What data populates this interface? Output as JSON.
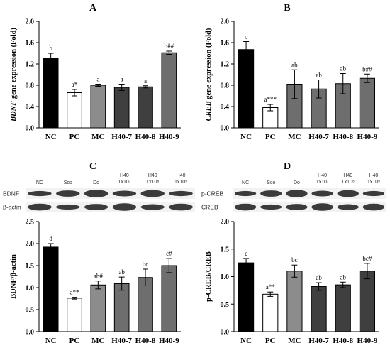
{
  "colors": {
    "NC": "#000000",
    "PC": "#ffffff",
    "MC": "#8c8c8c",
    "H40": "#3f3f3f",
    "H40-9_A": "#6e6e6e"
  },
  "chart_data": [
    {
      "panel": "A",
      "type": "bar",
      "title": "A",
      "ylabel_italic": "BDNF",
      "ylabel_rest": " gene expression (Fold)",
      "categories": [
        "NC",
        "PC",
        "MC",
        "H40-7",
        "H40-8",
        "H40-9"
      ],
      "values": [
        1.3,
        0.66,
        0.8,
        0.76,
        0.77,
        1.41
      ],
      "errors": [
        0.1,
        0.06,
        0.02,
        0.06,
        0.02,
        0.03
      ],
      "sig": [
        "b",
        "a*",
        "a",
        "a",
        "a",
        "b##"
      ],
      "fill_keys": [
        "NC",
        "PC",
        "MC",
        "H40",
        "H40",
        "H40-9_A"
      ],
      "ylim": [
        0.0,
        2.0
      ],
      "yticks": [
        "0.0",
        "0.4",
        "0.8",
        "1.2",
        "1.6",
        "2.0"
      ]
    },
    {
      "panel": "B",
      "type": "bar",
      "title": "B",
      "ylabel_italic": "CREB",
      "ylabel_rest": " gene expression (Fold)",
      "categories": [
        "NC",
        "PC",
        "MC",
        "H40-7",
        "H40-8",
        "H40-9"
      ],
      "values": [
        1.47,
        0.38,
        0.82,
        0.73,
        0.83,
        0.93
      ],
      "errors": [
        0.15,
        0.06,
        0.27,
        0.17,
        0.19,
        0.08
      ],
      "sig": [
        "c",
        "a***",
        "ab",
        "ab",
        "ab",
        "b##"
      ],
      "fill_keys": [
        "NC",
        "PC",
        "H40-9_A",
        "H40-9_A",
        "H40-9_A",
        "H40-9_A"
      ],
      "ylim": [
        0.0,
        2.0
      ],
      "yticks": [
        "0.0",
        "0.4",
        "0.8",
        "1.2",
        "1.6",
        "2.0"
      ]
    },
    {
      "panel": "C",
      "type": "bar",
      "title": "C",
      "ylabel_italic": "",
      "ylabel_rest": "BDNF/β-actin",
      "categories": [
        "NC",
        "PC",
        "MC",
        "H40-7",
        "H40-8",
        "H40-9"
      ],
      "values": [
        1.92,
        0.76,
        1.06,
        1.09,
        1.23,
        1.5
      ],
      "errors": [
        0.08,
        0.02,
        0.09,
        0.15,
        0.19,
        0.16
      ],
      "sig": [
        "d",
        "a**",
        "ab#",
        "ab",
        "bc",
        "c#"
      ],
      "fill_keys": [
        "NC",
        "PC",
        "MC",
        "H40-9_A",
        "H40-9_A",
        "H40-9_A"
      ],
      "ylim": [
        0.0,
        2.5
      ],
      "yticks": [
        "0.0",
        "0.5",
        "1.0",
        "1.5",
        "2.0",
        "2.5"
      ]
    },
    {
      "panel": "D",
      "type": "bar",
      "title": "D",
      "ylabel_italic": "",
      "ylabel_rest": "p-CREB/CREB",
      "categories": [
        "NC",
        "PC",
        "MC",
        "H40-7",
        "H40-8",
        "H40-9"
      ],
      "values": [
        1.25,
        0.68,
        1.1,
        0.82,
        0.85,
        1.1
      ],
      "errors": [
        0.08,
        0.04,
        0.11,
        0.07,
        0.05,
        0.14
      ],
      "sig": [
        "c",
        "a**",
        "bc",
        "ab",
        "ab",
        "bc#"
      ],
      "fill_keys": [
        "NC",
        "PC",
        "MC",
        "H40",
        "H40",
        "H40"
      ],
      "ylim": [
        0.0,
        2.0
      ],
      "yticks": [
        "0.0",
        "0.5",
        "1.0",
        "1.5",
        "2.0"
      ]
    }
  ],
  "blots": {
    "C": {
      "lane_labels": [
        [
          "NC"
        ],
        [
          "Sco"
        ],
        [
          "Do"
        ],
        [
          "H40",
          "1x10⁷"
        ],
        [
          "H40",
          "1x10⁸"
        ],
        [
          "H40",
          "1x10⁹"
        ]
      ],
      "rows": [
        "BDNF",
        "β-actin"
      ]
    },
    "D": {
      "lane_labels": [
        [
          "NC"
        ],
        [
          "Sco"
        ],
        [
          "Do"
        ],
        [
          "H40",
          "1x10⁷"
        ],
        [
          "H40",
          "1x10⁸"
        ],
        [
          "H40",
          "1x10⁹"
        ]
      ],
      "rows": [
        "p-CREB",
        "CREB"
      ]
    }
  }
}
